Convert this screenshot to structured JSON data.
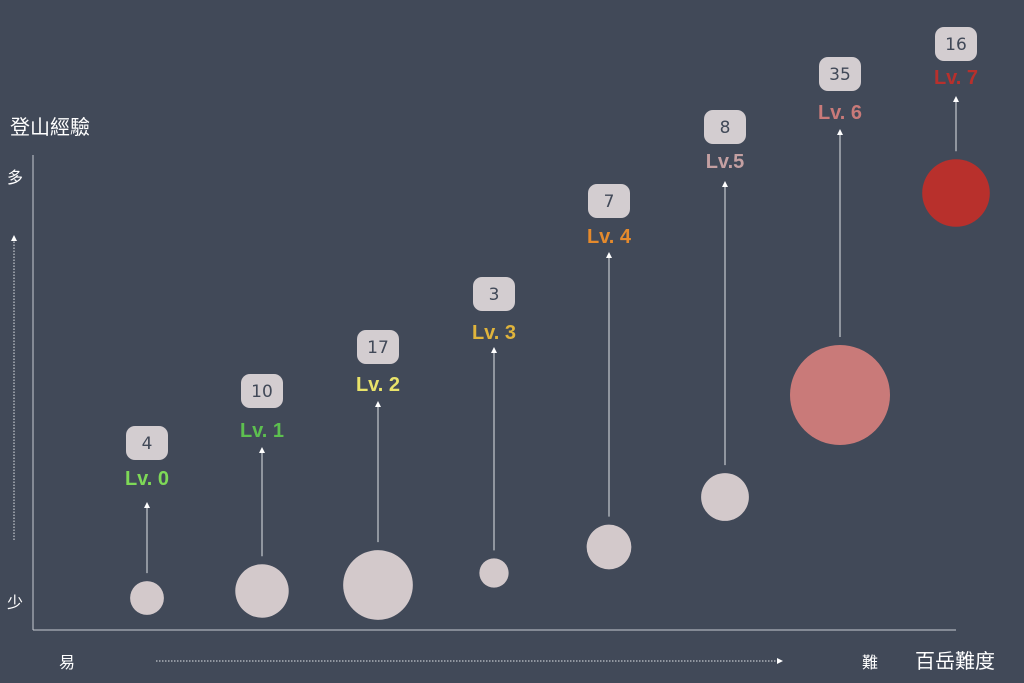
{
  "chart_data": {
    "type": "scatter",
    "title": "",
    "xlabel": "百岳難度",
    "ylabel": "登山經驗",
    "x_low_label": "易",
    "x_high_label": "難",
    "y_high_label": "多",
    "y_low_label": "少",
    "points": [
      {
        "level": "Lv. 0",
        "count": 4,
        "x": 0,
        "y": 0.2,
        "color": "#7ed957"
      },
      {
        "level": "Lv. 1",
        "count": 10,
        "x": 1,
        "y": 0.5,
        "color": "#5dc04f"
      },
      {
        "level": "Lv. 2",
        "count": 17,
        "x": 2,
        "y": 0.6,
        "color": "#e9e36a"
      },
      {
        "level": "Lv. 3",
        "count": 3,
        "x": 3,
        "y": 0.7,
        "color": "#e0b43c"
      },
      {
        "level": "Lv. 4",
        "count": 7,
        "x": 4,
        "y": 1.0,
        "color": "#e58a2c"
      },
      {
        "level": "Lv.5",
        "count": 8,
        "x": 5,
        "y": 1.5,
        "color": "#c4a0a2"
      },
      {
        "level": "Lv. 6",
        "count": 35,
        "x": 6,
        "y": 2.5,
        "color": "#c97a79"
      },
      {
        "level": "Lv. 7",
        "count": 16,
        "x": 7,
        "y": 4.5,
        "color": "#b8302c"
      }
    ],
    "bubble_color": "#d3c9cb",
    "bubble_color_lv6": "#c97a79",
    "bubble_color_lv7": "#b8302c",
    "badge_color": "#d3cdd0",
    "grid": false
  }
}
